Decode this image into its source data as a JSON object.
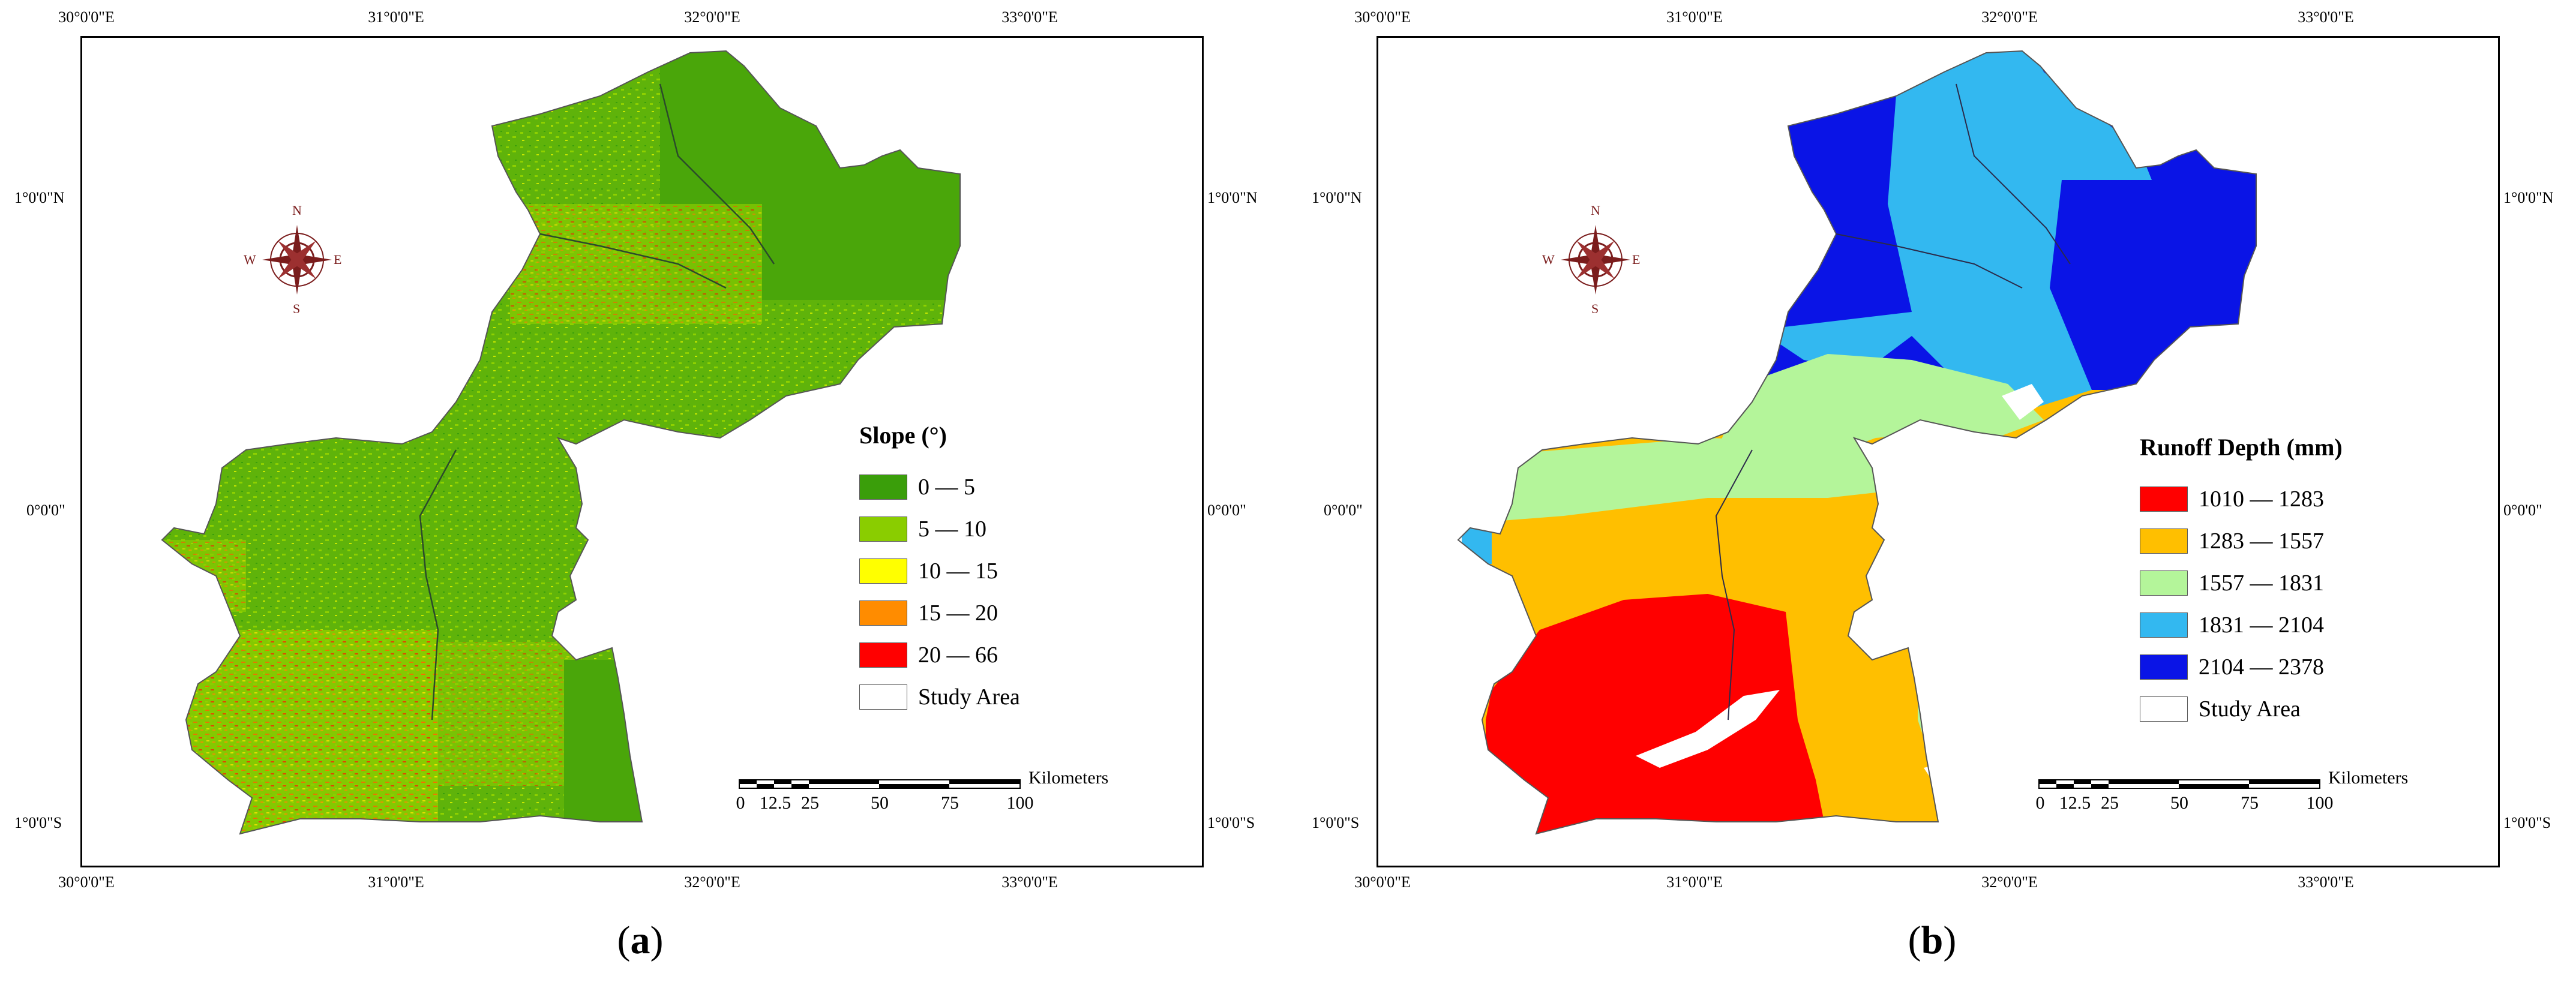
{
  "panels": [
    {
      "caption_open": "(",
      "caption_letter": "a",
      "caption_close": ")",
      "lon_labels": [
        "30°0'0\"E",
        "31°0'0\"E",
        "32°0'0\"E",
        "33°0'0\"E"
      ],
      "lat_labels": [
        "1°0'0\"N",
        "0°0'0\"",
        "1°0'0\"S"
      ],
      "compass": {
        "n": "N",
        "s": "S",
        "e": "E",
        "w": "W"
      },
      "legend": {
        "title": "Slope (°)",
        "items": [
          {
            "label": "0 — 5",
            "color": "#3a9e0a"
          },
          {
            "label": "5 — 10",
            "color": "#8acd00"
          },
          {
            "label": "10 — 15",
            "color": "#ffff00"
          },
          {
            "label": "15 — 20",
            "color": "#ff8c00"
          },
          {
            "label": "20 — 66",
            "color": "#ff0000"
          },
          {
            "label": "Study Area",
            "color": "#ffffff"
          }
        ]
      },
      "scalebar": {
        "unit": "Kilometers",
        "ticks": [
          "0",
          "12.5",
          "25",
          "50",
          "75",
          "100"
        ]
      }
    },
    {
      "caption_open": "(",
      "caption_letter": "b",
      "caption_close": ")",
      "lon_labels": [
        "30°0'0\"E",
        "31°0'0\"E",
        "32°0'0\"E",
        "33°0'0\"E"
      ],
      "lat_labels": [
        "1°0'0\"N",
        "0°0'0\"",
        "1°0'0\"S"
      ],
      "compass": {
        "n": "N",
        "s": "S",
        "e": "E",
        "w": "W"
      },
      "legend": {
        "title": "Runoff Depth (mm)",
        "items": [
          {
            "label": "1010 — 1283",
            "color": "#ff0000"
          },
          {
            "label": "1283 — 1557",
            "color": "#ffbf00"
          },
          {
            "label": "1557 — 1831",
            "color": "#b4f59a"
          },
          {
            "label": "1831 — 2104",
            "color": "#33b8f0"
          },
          {
            "label": "2104 — 2378",
            "color": "#0a14e6"
          },
          {
            "label": "Study Area",
            "color": "#ffffff"
          }
        ]
      },
      "scalebar": {
        "unit": "Kilometers",
        "ticks": [
          "0",
          "12.5",
          "25",
          "50",
          "75",
          "100"
        ]
      }
    }
  ]
}
